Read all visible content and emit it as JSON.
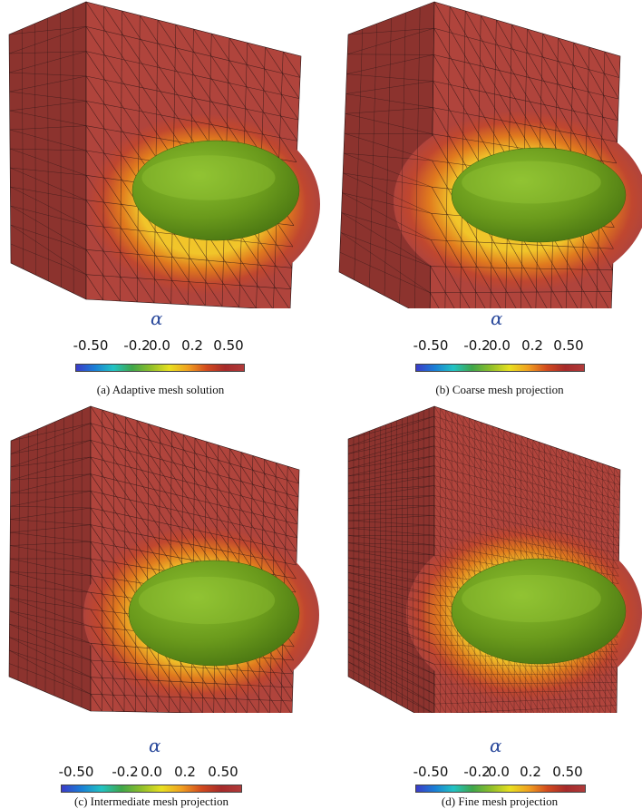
{
  "colorbar": {
    "symbol": "α",
    "ticks": [
      "-0.50",
      "-0.2",
      "0.0",
      "0.2",
      "0.50"
    ],
    "gradient": [
      "#3b3bc8",
      "#1a7fd6",
      "#22c3c3",
      "#3fa64a",
      "#8fbf2a",
      "#e8e020",
      "#f0a020",
      "#d24a1e",
      "#a62a2a",
      "#b03a3a"
    ]
  },
  "colors": {
    "block_front": "#b0443c",
    "block_top": "#a33e37",
    "block_side": "#8c332e",
    "blob": "#6a9a1c",
    "blob_dark": "#4a7612",
    "halo_inner": "#f1c52a",
    "halo_mid": "#e07a1e",
    "halo_outer": "#c0472f",
    "mesh_line": "#2a1414"
  },
  "panels": [
    {
      "id": "a",
      "caption": "(a)  Adaptive mesh solution",
      "mesh": "adaptive"
    },
    {
      "id": "b",
      "caption": "(b)  Coarse mesh projection",
      "mesh": "coarse"
    },
    {
      "id": "c",
      "caption": "(c)  Intermediate mesh projection",
      "mesh": "intermediate"
    },
    {
      "id": "d",
      "caption": "(d)  Fine mesh projection",
      "mesh": "fine"
    }
  ]
}
